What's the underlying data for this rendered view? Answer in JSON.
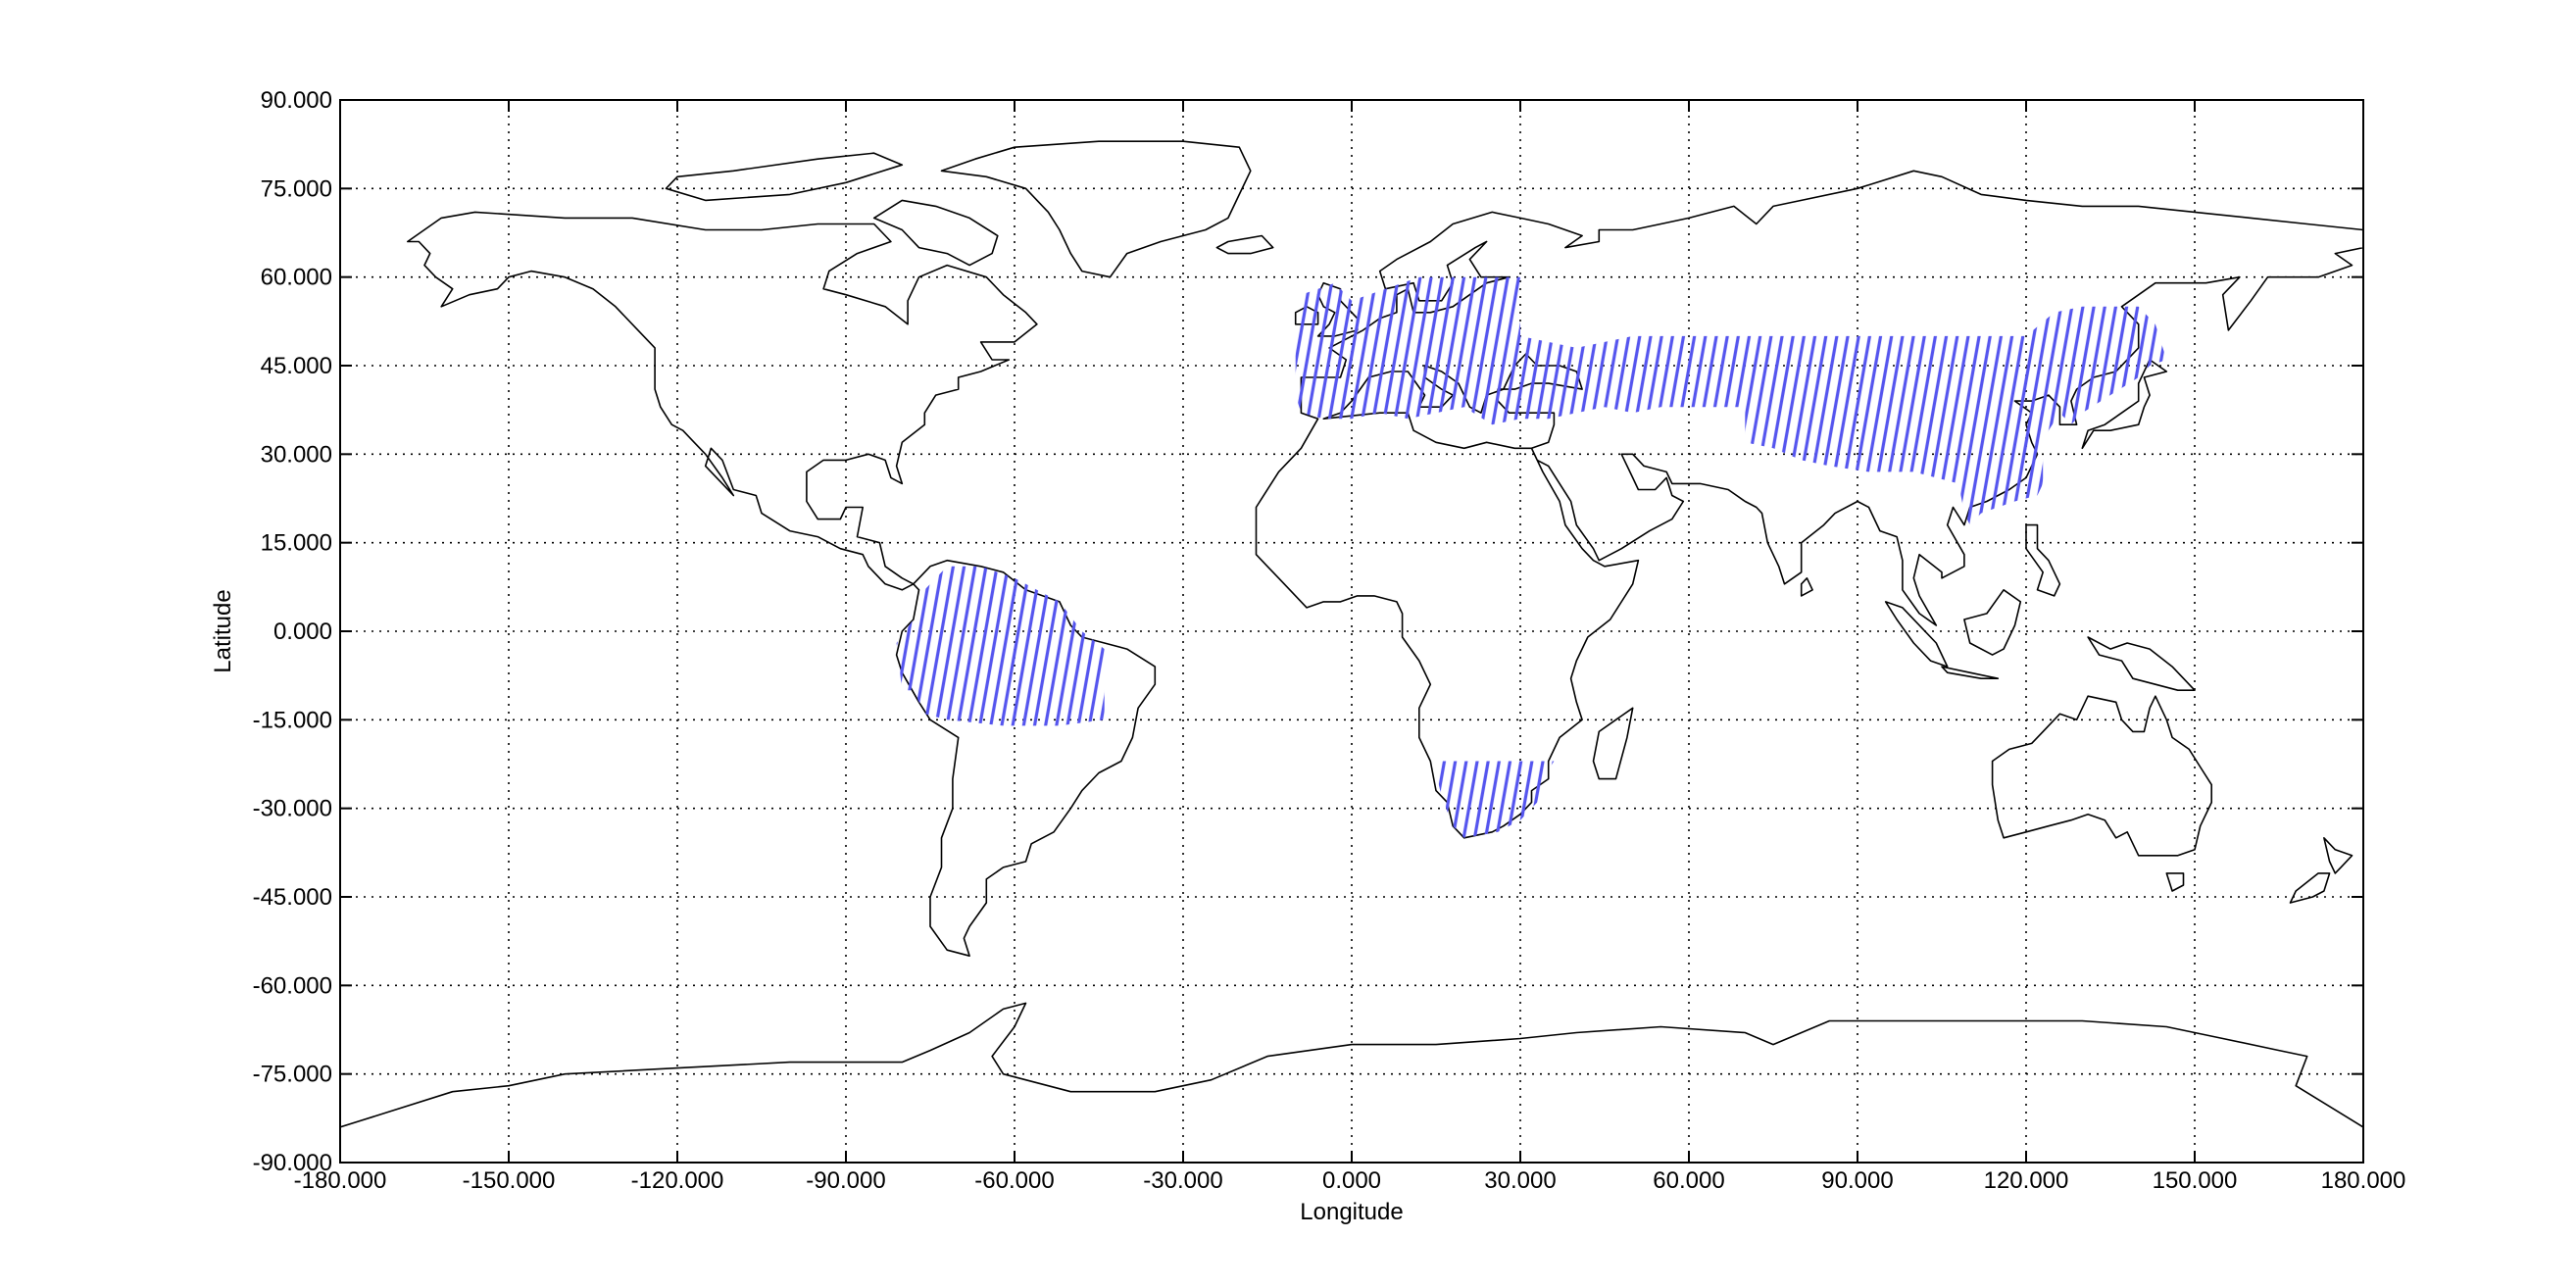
{
  "figure": {
    "xlabel": "Longitude",
    "ylabel": "Latitude"
  },
  "map": {
    "projection": "equirectangular",
    "xlim": [
      -180,
      180
    ],
    "ylim": [
      -90,
      90
    ],
    "grid": true,
    "xticks": [
      "-180.000",
      "-150.000",
      "-120.000",
      "-90.000",
      "-60.000",
      "-30.000",
      "0.000",
      "30.000",
      "60.000",
      "90.000",
      "120.000",
      "150.000",
      "180.000"
    ],
    "yticks": [
      "90.000",
      "75.000",
      "60.000",
      "45.000",
      "30.000",
      "15.000",
      "0.000",
      "-15.000",
      "-30.000",
      "-45.000",
      "-60.000",
      "-75.000",
      "-90.000"
    ],
    "coastline_color": "#000000",
    "coverage_color": "#5555ee",
    "coverage_regions": [
      {
        "name": "south-america",
        "polygon": [
          [
            -80,
            -10
          ],
          [
            -81,
            -2
          ],
          [
            -78,
            2
          ],
          [
            -76,
            7
          ],
          [
            -72,
            11
          ],
          [
            -66,
            11
          ],
          [
            -60,
            9
          ],
          [
            -52,
            5
          ],
          [
            -48,
            0
          ],
          [
            -44,
            -3
          ],
          [
            -44,
            -15
          ],
          [
            -52,
            -16
          ],
          [
            -62,
            -16
          ],
          [
            -72,
            -15
          ],
          [
            -76,
            -14
          ],
          [
            -78,
            -10
          ]
        ]
      },
      {
        "name": "europe-asia",
        "polygon": [
          [
            -10,
            44
          ],
          [
            -10,
            49
          ],
          [
            -9,
            57
          ],
          [
            -3,
            59
          ],
          [
            0,
            56
          ],
          [
            6,
            58
          ],
          [
            12,
            60
          ],
          [
            20,
            60
          ],
          [
            30,
            60
          ],
          [
            30,
            50
          ],
          [
            40,
            48
          ],
          [
            50,
            50
          ],
          [
            70,
            50
          ],
          [
            90,
            50
          ],
          [
            110,
            50
          ],
          [
            120,
            50
          ],
          [
            125,
            54
          ],
          [
            130,
            55
          ],
          [
            140,
            55
          ],
          [
            143,
            52
          ],
          [
            145,
            46
          ],
          [
            142,
            45
          ],
          [
            140,
            43
          ],
          [
            135,
            40
          ],
          [
            130,
            37
          ],
          [
            128,
            35
          ],
          [
            126,
            37
          ],
          [
            124,
            34
          ],
          [
            123,
            32
          ],
          [
            123,
            25
          ],
          [
            122,
            23
          ],
          [
            118,
            22
          ],
          [
            112,
            20
          ],
          [
            110,
            18
          ],
          [
            109,
            20
          ],
          [
            108,
            25
          ],
          [
            100,
            27
          ],
          [
            92,
            27
          ],
          [
            85,
            28
          ],
          [
            80,
            29
          ],
          [
            75,
            31
          ],
          [
            70,
            32
          ],
          [
            70,
            38
          ],
          [
            60,
            38
          ],
          [
            55,
            38
          ],
          [
            50,
            37
          ],
          [
            45,
            38
          ],
          [
            40,
            37
          ],
          [
            35,
            36
          ],
          [
            30,
            36
          ],
          [
            25,
            35
          ],
          [
            20,
            38
          ],
          [
            15,
            37
          ],
          [
            10,
            36
          ],
          [
            5,
            37
          ],
          [
            0,
            36
          ],
          [
            -5,
            36
          ],
          [
            -9,
            37
          ],
          [
            -10,
            40
          ]
        ]
      },
      {
        "name": "southern-africa",
        "polygon": [
          [
            15,
            -22
          ],
          [
            36,
            -22
          ],
          [
            34,
            -25
          ],
          [
            33,
            -29
          ],
          [
            30,
            -32
          ],
          [
            26,
            -34
          ],
          [
            20,
            -35
          ],
          [
            18,
            -33
          ],
          [
            16,
            -28
          ],
          [
            15,
            -24
          ]
        ]
      }
    ]
  }
}
